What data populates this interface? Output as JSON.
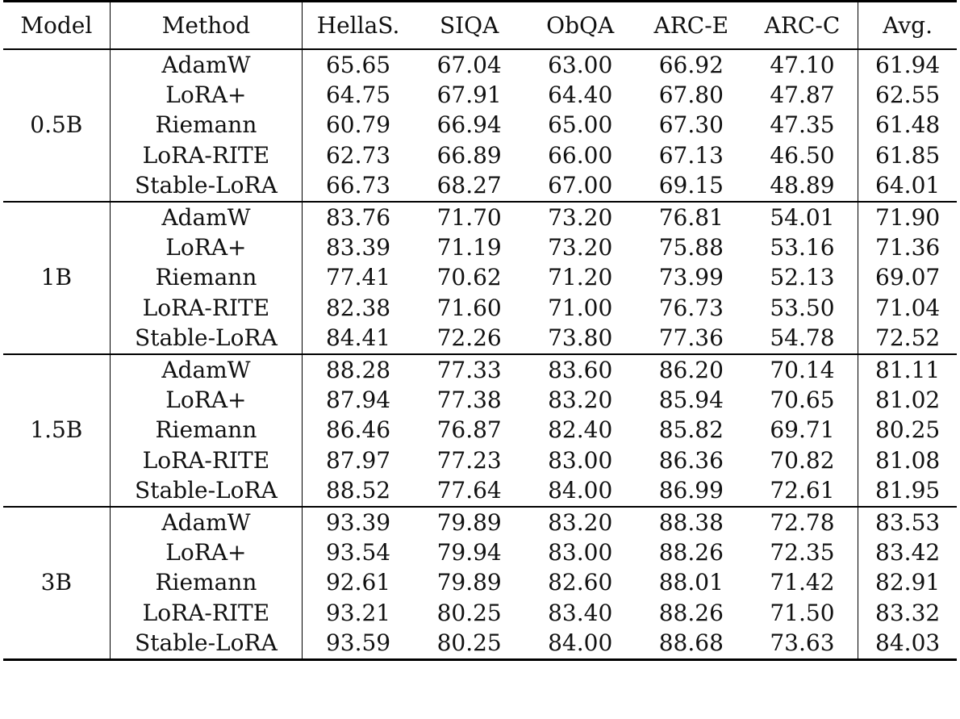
{
  "columns": [
    "Model",
    "Method",
    "HellaS.",
    "SIQA",
    "ObQA",
    "ARC-E",
    "ARC-C",
    "Avg."
  ],
  "groups": [
    {
      "model": "0.5B",
      "rows": [
        {
          "method": "AdamW",
          "values": [
            "65.65",
            "67.04",
            "63.00",
            "66.92",
            "47.10",
            "61.94"
          ]
        },
        {
          "method": "LoRA+",
          "values": [
            "64.75",
            "67.91",
            "64.40",
            "67.80",
            "47.87",
            "62.55"
          ]
        },
        {
          "method": "Riemann",
          "values": [
            "60.79",
            "66.94",
            "65.00",
            "67.30",
            "47.35",
            "61.48"
          ]
        },
        {
          "method": "LoRA-RITE",
          "values": [
            "62.73",
            "66.89",
            "66.00",
            "67.13",
            "46.50",
            "61.85"
          ]
        },
        {
          "method": "Stable-LoRA",
          "values": [
            "66.73",
            "68.27",
            "67.00",
            "69.15",
            "48.89",
            "64.01"
          ]
        }
      ]
    },
    {
      "model": "1B",
      "rows": [
        {
          "method": "AdamW",
          "values": [
            "83.76",
            "71.70",
            "73.20",
            "76.81",
            "54.01",
            "71.90"
          ]
        },
        {
          "method": "LoRA+",
          "values": [
            "83.39",
            "71.19",
            "73.20",
            "75.88",
            "53.16",
            "71.36"
          ]
        },
        {
          "method": "Riemann",
          "values": [
            "77.41",
            "70.62",
            "71.20",
            "73.99",
            "52.13",
            "69.07"
          ]
        },
        {
          "method": "LoRA-RITE",
          "values": [
            "82.38",
            "71.60",
            "71.00",
            "76.73",
            "53.50",
            "71.04"
          ]
        },
        {
          "method": "Stable-LoRA",
          "values": [
            "84.41",
            "72.26",
            "73.80",
            "77.36",
            "54.78",
            "72.52"
          ]
        }
      ]
    },
    {
      "model": "1.5B",
      "rows": [
        {
          "method": "AdamW",
          "values": [
            "88.28",
            "77.33",
            "83.60",
            "86.20",
            "70.14",
            "81.11"
          ]
        },
        {
          "method": "LoRA+",
          "values": [
            "87.94",
            "77.38",
            "83.20",
            "85.94",
            "70.65",
            "81.02"
          ]
        },
        {
          "method": "Riemann",
          "values": [
            "86.46",
            "76.87",
            "82.40",
            "85.82",
            "69.71",
            "80.25"
          ]
        },
        {
          "method": "LoRA-RITE",
          "values": [
            "87.97",
            "77.23",
            "83.00",
            "86.36",
            "70.82",
            "81.08"
          ]
        },
        {
          "method": "Stable-LoRA",
          "values": [
            "88.52",
            "77.64",
            "84.00",
            "86.99",
            "72.61",
            "81.95"
          ]
        }
      ]
    },
    {
      "model": "3B",
      "rows": [
        {
          "method": "AdamW",
          "values": [
            "93.39",
            "79.89",
            "83.20",
            "88.38",
            "72.78",
            "83.53"
          ]
        },
        {
          "method": "LoRA+",
          "values": [
            "93.54",
            "79.94",
            "83.00",
            "88.26",
            "72.35",
            "83.42"
          ]
        },
        {
          "method": "Riemann",
          "values": [
            "92.61",
            "79.89",
            "82.60",
            "88.01",
            "71.42",
            "82.91"
          ]
        },
        {
          "method": "LoRA-RITE",
          "values": [
            "93.21",
            "80.25",
            "83.40",
            "88.26",
            "71.50",
            "83.32"
          ]
        },
        {
          "method": "Stable-LoRA",
          "values": [
            "93.59",
            "80.25",
            "84.00",
            "88.68",
            "73.63",
            "84.03"
          ]
        }
      ]
    }
  ],
  "bold_method": "Stable-LoRA"
}
